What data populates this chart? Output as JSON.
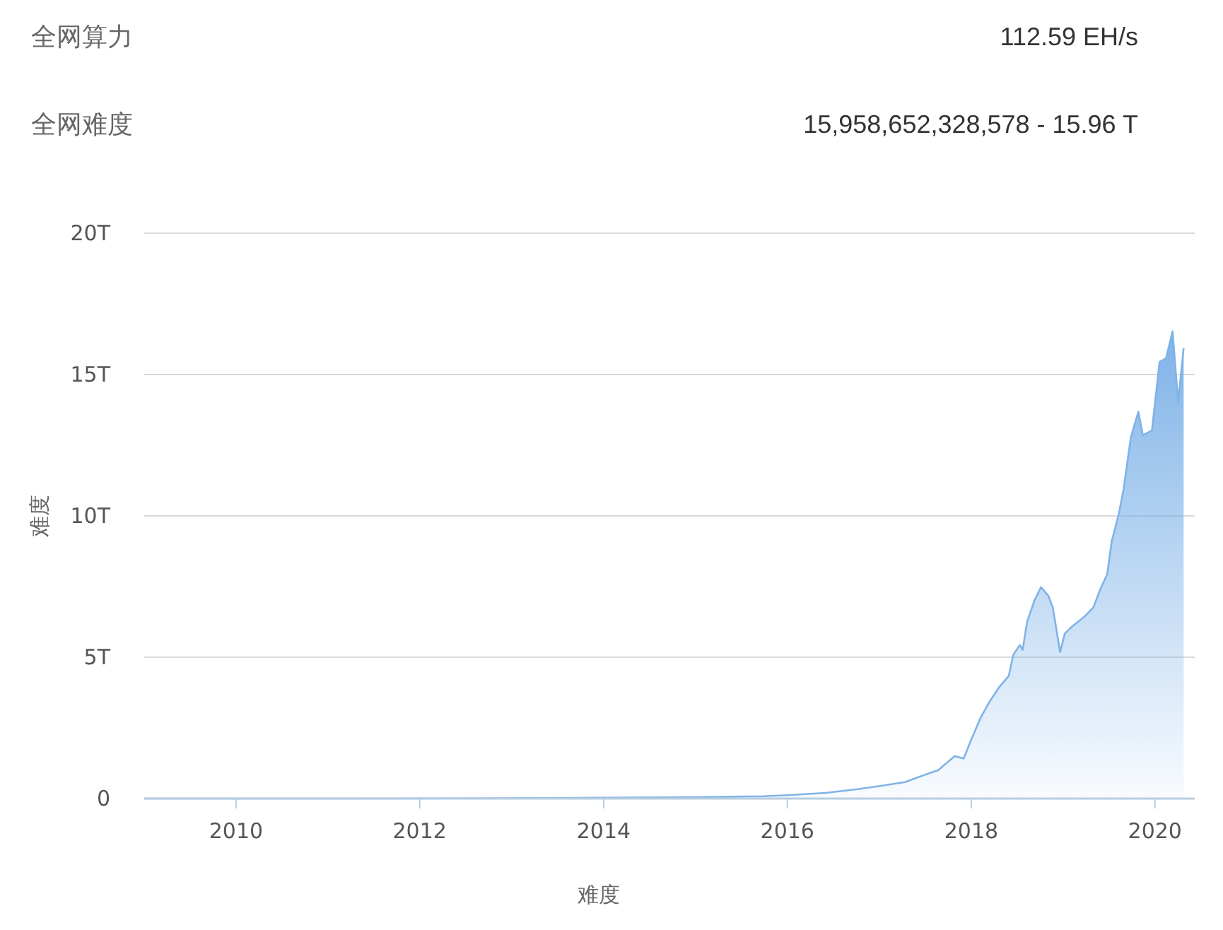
{
  "chart_data": {
    "type": "area",
    "annotations": [
      "全网算力",
      "112.59 EH/s",
      "全网难度",
      "15,958,652,328,578 - 15.96 T"
    ],
    "xlabel": "难度",
    "ylabel": "难度",
    "xlim": [
      "2009-01-01",
      "2020-06-07"
    ],
    "xticks": [
      "2010",
      "2012",
      "2014",
      "2016",
      "2018",
      "2020"
    ],
    "ylim": [
      0,
      20
    ],
    "yticks": [
      0,
      {
        "value": 5,
        "label": "5T"
      },
      {
        "value": 10,
        "label": "10T"
      },
      {
        "value": 15,
        "label": "15T"
      },
      {
        "value": 20,
        "label": "20T"
      }
    ],
    "grid": "y",
    "x": [
      "2009-01-03",
      "2011-01-01",
      "2013-01-01",
      "2014-01-01",
      "2015-01-01",
      "2015-09-27",
      "2016-01-01",
      "2016-06-01",
      "2016-10-05",
      "2017-01-08",
      "2017-04-12",
      "2017-07-13",
      "2017-08-22",
      "2017-10-27",
      "2017-12-02",
      "2017-12-28",
      "2018-02-06",
      "2018-03-14",
      "2018-04-20",
      "2018-05-30",
      "2018-06-17",
      "2018-07-13",
      "2018-07-24",
      "2018-08-11",
      "2018-09-09",
      "2018-10-05",
      "2018-11-03",
      "2018-11-21",
      "2018-12-20",
      "2019-01-08",
      "2019-02-06",
      "2019-03-26",
      "2019-05-01",
      "2019-05-30",
      "2019-06-25",
      "2019-07-13",
      "2019-08-11",
      "2019-08-29",
      "2019-09-27",
      "2019-10-27",
      "2019-11-14",
      "2019-12-20",
      "2020-01-19",
      "2020-02-14",
      "2020-03-11",
      "2020-04-02",
      "2020-04-24"
    ],
    "series": [
      {
        "color": "#7fb3e8",
        "values": [
          0,
          0,
          0.01,
          0.03,
          0.05,
          0.08,
          0.12,
          0.2,
          0.33,
          0.45,
          0.58,
          0.88,
          1.0,
          1.5,
          1.42,
          2.0,
          2.84,
          3.42,
          3.92,
          4.34,
          5.09,
          5.43,
          5.26,
          6.26,
          7.01,
          7.48,
          7.18,
          6.76,
          5.18,
          5.84,
          6.09,
          6.43,
          6.76,
          7.43,
          7.93,
          9.1,
          10.1,
          10.93,
          12.77,
          13.69,
          12.85,
          13.02,
          15.44,
          15.58,
          16.53,
          14.02,
          15.94
        ]
      }
    ]
  }
}
